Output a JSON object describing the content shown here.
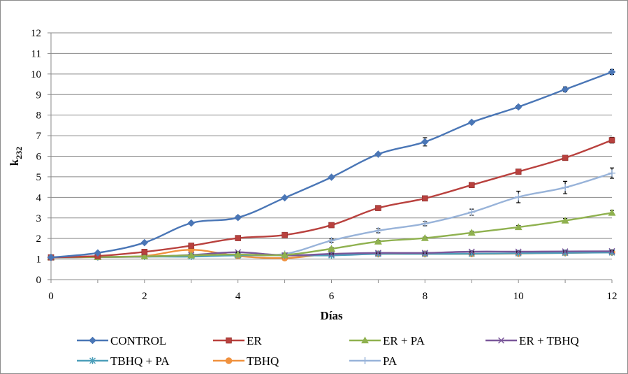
{
  "chart_data": {
    "type": "line",
    "title": "",
    "xlabel": "Días",
    "ylabel": {
      "main": "k",
      "sub": "232"
    },
    "xlim": [
      0,
      12
    ],
    "ylim": [
      0,
      12
    ],
    "x_ticks": [
      0,
      2,
      4,
      6,
      8,
      10,
      12
    ],
    "y_ticks": [
      0,
      1,
      2,
      3,
      4,
      5,
      6,
      7,
      8,
      9,
      10,
      11,
      12
    ],
    "grid": "horizontal",
    "legend_position": "bottom",
    "x": [
      0,
      1,
      2,
      3,
      4,
      5,
      6,
      7,
      8,
      9,
      10,
      11,
      12
    ],
    "series": [
      {
        "name": "CONTROL",
        "color": "#4a76b6",
        "marker": "diamond",
        "values": [
          1.08,
          1.3,
          1.8,
          2.75,
          3.02,
          3.98,
          4.98,
          6.1,
          6.7,
          7.65,
          8.4,
          9.25,
          10.1
        ],
        "errors": [
          0.02,
          0.03,
          0.04,
          0.05,
          0.08,
          0.05,
          0.07,
          0.05,
          0.2,
          0.05,
          0.08,
          0.12,
          0.12
        ]
      },
      {
        "name": "ER",
        "color": "#b9413e",
        "marker": "square",
        "values": [
          1.08,
          1.15,
          1.35,
          1.65,
          2.02,
          2.17,
          2.65,
          3.48,
          3.95,
          4.6,
          5.25,
          5.92,
          6.78
        ],
        "errors": [
          0.02,
          0.02,
          0.03,
          0.03,
          0.05,
          0.04,
          0.06,
          0.07,
          0.08,
          0.08,
          0.07,
          0.08,
          0.14
        ]
      },
      {
        "name": "ER + PA",
        "color": "#8fb14f",
        "marker": "triangle",
        "values": [
          1.08,
          1.1,
          1.13,
          1.18,
          1.22,
          1.2,
          1.5,
          1.85,
          2.02,
          2.28,
          2.55,
          2.87,
          3.25
        ],
        "errors": [
          0.02,
          0.02,
          0.02,
          0.02,
          0.03,
          0.03,
          0.05,
          0.06,
          0.05,
          0.08,
          0.08,
          0.1,
          0.12
        ]
      },
      {
        "name": "ER + TBHQ",
        "color": "#7a579a",
        "marker": "x",
        "values": [
          1.08,
          1.1,
          1.12,
          1.2,
          1.33,
          1.18,
          1.25,
          1.3,
          1.3,
          1.36,
          1.36,
          1.37,
          1.38
        ],
        "errors": [
          0.02,
          0.02,
          0.02,
          0.02,
          0.03,
          0.03,
          0.03,
          0.03,
          0.03,
          0.03,
          0.03,
          0.03,
          0.03
        ]
      },
      {
        "name": "TBHQ + PA",
        "color": "#4d9fba",
        "marker": "star",
        "values": [
          1.08,
          1.1,
          1.12,
          1.12,
          1.18,
          1.18,
          1.18,
          1.25,
          1.25,
          1.26,
          1.28,
          1.3,
          1.32
        ],
        "errors": [
          0.02,
          0.02,
          0.02,
          0.02,
          0.02,
          0.02,
          0.02,
          0.02,
          0.02,
          0.02,
          0.02,
          0.02,
          0.02
        ]
      },
      {
        "name": "TBHQ",
        "color": "#f0913e",
        "marker": "circle",
        "values": [
          1.08,
          1.1,
          1.15,
          1.45,
          1.15,
          1.05,
          1.25,
          1.25,
          1.25,
          1.25,
          1.27,
          1.3,
          1.33
        ],
        "errors": [
          0.02,
          0.02,
          0.02,
          0.04,
          0.03,
          0.03,
          0.03,
          0.03,
          0.03,
          0.03,
          0.03,
          0.03,
          0.03
        ]
      },
      {
        "name": "PA",
        "color": "#98b3d9",
        "marker": "plus",
        "values": [
          1.08,
          1.1,
          1.12,
          1.15,
          1.2,
          1.25,
          1.9,
          2.38,
          2.72,
          3.28,
          4.02,
          4.48,
          5.18
        ],
        "errors": [
          0.02,
          0.02,
          0.02,
          0.02,
          0.03,
          0.04,
          0.08,
          0.1,
          0.1,
          0.15,
          0.28,
          0.3,
          0.25
        ]
      }
    ]
  }
}
